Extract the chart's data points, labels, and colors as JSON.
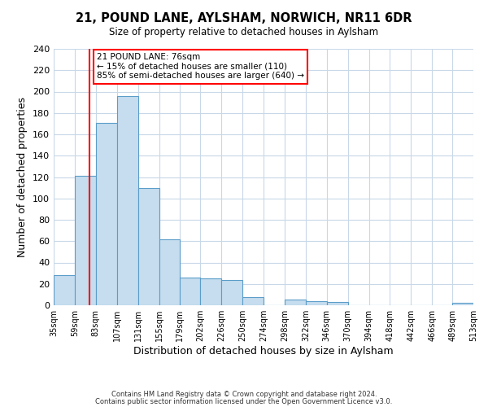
{
  "title": "21, POUND LANE, AYLSHAM, NORWICH, NR11 6DR",
  "subtitle": "Size of property relative to detached houses in Aylsham",
  "xlabel": "Distribution of detached houses by size in Aylsham",
  "ylabel": "Number of detached properties",
  "bin_edges": [
    35,
    59,
    83,
    107,
    131,
    155,
    179,
    202,
    226,
    250,
    274,
    298,
    322,
    346,
    370,
    394,
    418,
    442,
    466,
    489,
    513
  ],
  "bar_heights": [
    28,
    121,
    171,
    196,
    110,
    62,
    26,
    25,
    24,
    8,
    0,
    5,
    4,
    3,
    0,
    0,
    0,
    0,
    0,
    2
  ],
  "bar_color": "#c6ddef",
  "bar_edge_color": "#5b9dc9",
  "xlim_left": 35,
  "xlim_right": 513,
  "ylim_top": 240,
  "yticks": [
    0,
    20,
    40,
    60,
    80,
    100,
    120,
    140,
    160,
    180,
    200,
    220,
    240
  ],
  "xtick_labels": [
    "35sqm",
    "59sqm",
    "83sqm",
    "107sqm",
    "131sqm",
    "155sqm",
    "179sqm",
    "202sqm",
    "226sqm",
    "250sqm",
    "274sqm",
    "298sqm",
    "322sqm",
    "346sqm",
    "370sqm",
    "394sqm",
    "418sqm",
    "442sqm",
    "466sqm",
    "489sqm",
    "513sqm"
  ],
  "xtick_positions": [
    35,
    59,
    83,
    107,
    131,
    155,
    179,
    202,
    226,
    250,
    274,
    298,
    322,
    346,
    370,
    394,
    418,
    442,
    466,
    489,
    513
  ],
  "red_line_x": 76,
  "annotation_title": "21 POUND LANE: 76sqm",
  "annotation_line1": "← 15% of detached houses are smaller (110)",
  "annotation_line2": "85% of semi-detached houses are larger (640) →",
  "footer_line1": "Contains HM Land Registry data © Crown copyright and database right 2024.",
  "footer_line2": "Contains public sector information licensed under the Open Government Licence v3.0.",
  "background_color": "#ffffff",
  "grid_color": "#c8d8e8"
}
